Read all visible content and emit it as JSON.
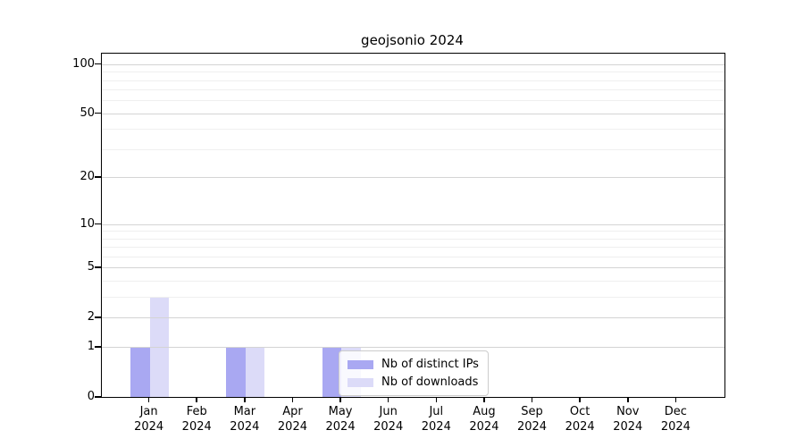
{
  "title": "geojsonio 2024",
  "chart_data": {
    "type": "bar",
    "title": "geojsonio 2024",
    "categories": [
      {
        "month": "Jan",
        "year": "2024"
      },
      {
        "month": "Feb",
        "year": "2024"
      },
      {
        "month": "Mar",
        "year": "2024"
      },
      {
        "month": "Apr",
        "year": "2024"
      },
      {
        "month": "May",
        "year": "2024"
      },
      {
        "month": "Jun",
        "year": "2024"
      },
      {
        "month": "Jul",
        "year": "2024"
      },
      {
        "month": "Aug",
        "year": "2024"
      },
      {
        "month": "Sep",
        "year": "2024"
      },
      {
        "month": "Oct",
        "year": "2024"
      },
      {
        "month": "Nov",
        "year": "2024"
      },
      {
        "month": "Dec",
        "year": "2024"
      }
    ],
    "series": [
      {
        "name": "Nb of distinct IPs",
        "color": "#a9a8f2",
        "values": [
          1,
          0,
          1,
          0,
          1,
          0,
          0,
          0,
          0,
          0,
          0,
          0
        ]
      },
      {
        "name": "Nb of downloads",
        "color": "#dcdbf8",
        "values": [
          3,
          0,
          1,
          0,
          1,
          0,
          0,
          0,
          0,
          0,
          0,
          0
        ]
      }
    ],
    "yscale": "log1p",
    "yticks_major": [
      0,
      1,
      2,
      5,
      10,
      20,
      50,
      100
    ],
    "yticks_minor": [
      3,
      4,
      6,
      7,
      8,
      9,
      30,
      40,
      60,
      70,
      80,
      90
    ],
    "ylim": [
      0,
      115
    ],
    "grid": "horizontal",
    "legend_position": "lower-center",
    "background": "#ffffff"
  }
}
